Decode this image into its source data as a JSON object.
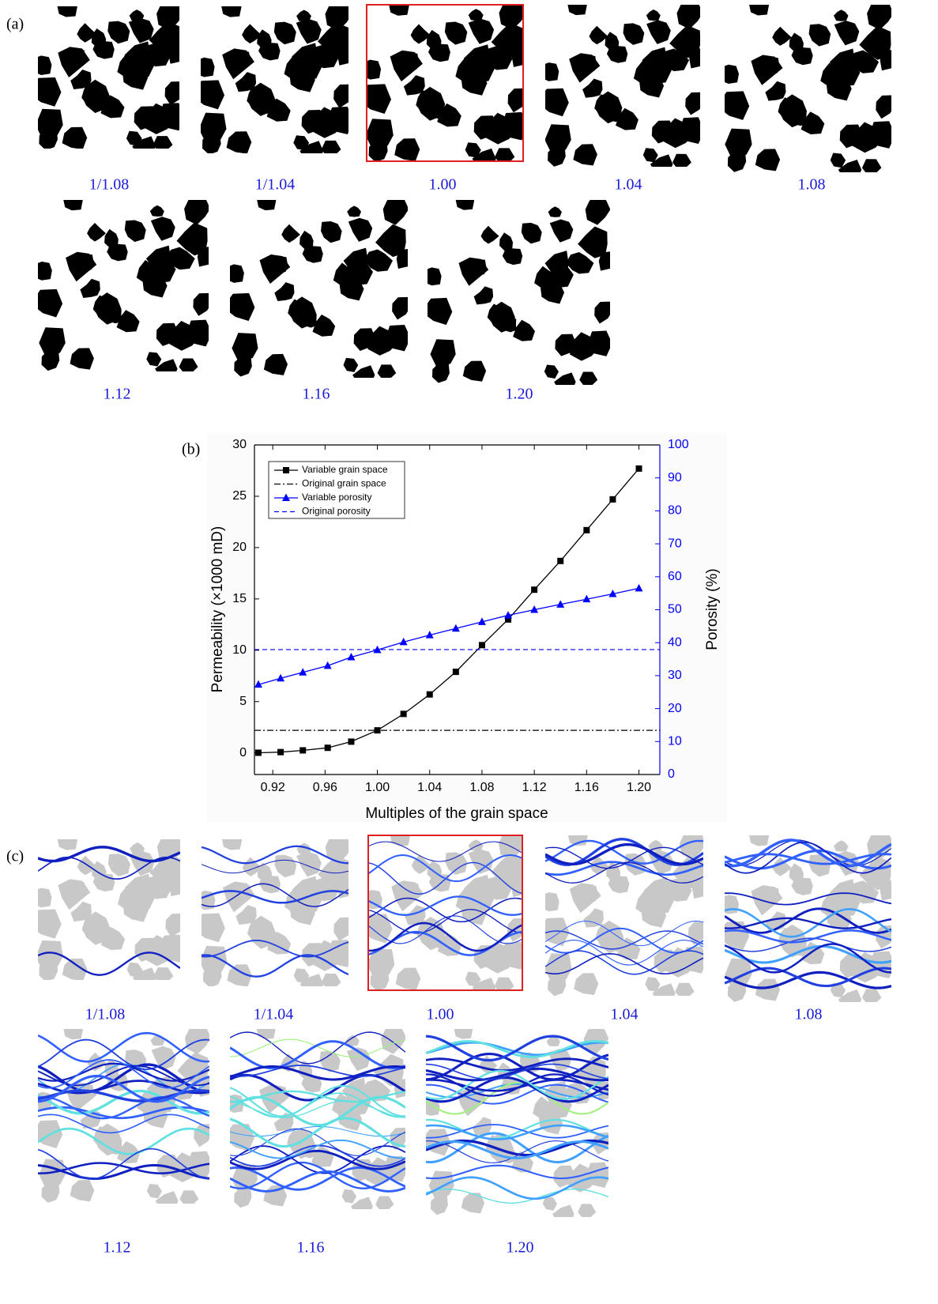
{
  "panel_a": {
    "label": "(a)",
    "captions": [
      "1/1.08",
      "1/1.04",
      "1.00",
      "1.04",
      "1.08",
      "1.12",
      "1.16",
      "1.20"
    ]
  },
  "chart_data": {
    "type": "line",
    "label": "(b)",
    "xlabel": "Multiples of the grain space",
    "ylabel": "Permeability (×1000 mD)",
    "y2label": "Porosity (%)",
    "x": [
      0.909,
      0.926,
      0.943,
      0.962,
      0.98,
      1,
      1.02,
      1.04,
      1.06,
      1.08,
      1.1,
      1.12,
      1.14,
      1.16,
      1.18,
      1.2
    ],
    "xlim": [
      0.906,
      1.216
    ],
    "xticks": [
      0.92,
      0.96,
      {
        "value": 1,
        "label": "1.00"
      },
      1.04,
      1.08,
      1.12,
      1.16,
      {
        "value": 1.2,
        "label": "1.20"
      }
    ],
    "ylim": [
      -2.1,
      30
    ],
    "yticks": [
      0,
      5,
      10,
      15,
      20,
      25,
      30
    ],
    "y2lim": [
      0,
      100
    ],
    "y2ticks": [
      0,
      10,
      20,
      30,
      40,
      50,
      60,
      70,
      80,
      90,
      100
    ],
    "series": [
      {
        "name": "Variable grain space",
        "color": "#000000",
        "marker": "square",
        "values": [
          0.02,
          0.08,
          0.25,
          0.5,
          1.1,
          2.2,
          3.8,
          5.7,
          7.9,
          10.5,
          13.0,
          15.9,
          18.7,
          21.7,
          24.7,
          27.7
        ]
      },
      {
        "name": "Original grain space",
        "color": "#000000",
        "dash": "dashdot",
        "hline": 2.2
      },
      {
        "name": "Variable porosity",
        "color": "#0000ff",
        "marker": "triangle",
        "axis": "y2",
        "values": [
          27.3,
          29.2,
          31.0,
          33.0,
          35.6,
          37.8,
          40.2,
          42.3,
          44.3,
          46.3,
          48.3,
          50.0,
          51.6,
          53.2,
          54.8,
          56.5
        ]
      },
      {
        "name": "Original porosity",
        "color": "#0000ff",
        "dash": "dashed",
        "axis": "y2",
        "hline": 37.9
      }
    ]
  },
  "panel_c": {
    "label": "(c)",
    "captions": [
      "1/1.08",
      "1/1.04",
      "1.00",
      "1.04",
      "1.08",
      "1.12",
      "1.16",
      "1.20"
    ]
  }
}
